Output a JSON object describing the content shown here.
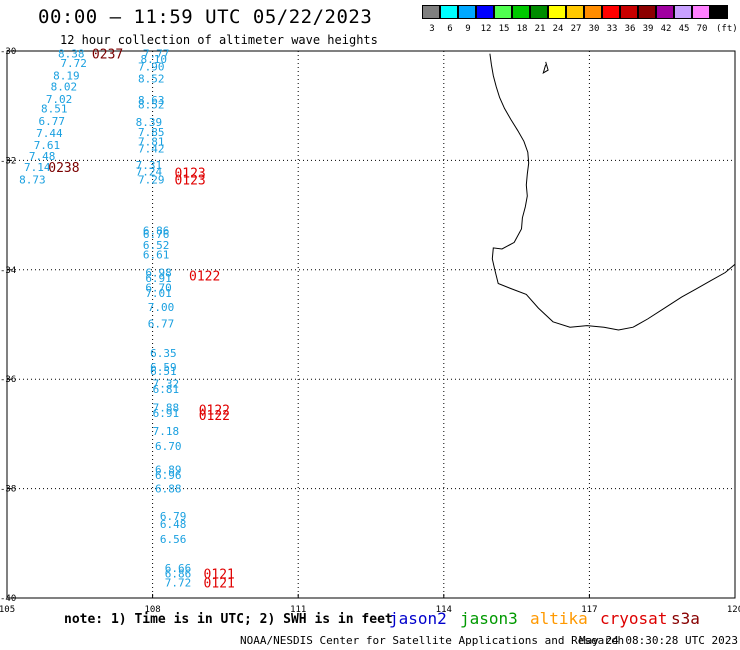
{
  "header": {
    "title": "00:00 – 11:59 UTC 05/22/2023",
    "subtitle": "12 hour collection of altimeter wave heights"
  },
  "colorbar": {
    "unit": "(ft)",
    "bins": [
      {
        "label": "3",
        "color": "#7f7f7f"
      },
      {
        "label": "6",
        "color": "#00ffff"
      },
      {
        "label": "9",
        "color": "#00a8ff"
      },
      {
        "label": "12",
        "color": "#0000ff"
      },
      {
        "label": "15",
        "color": "#50ff50"
      },
      {
        "label": "18",
        "color": "#00c800"
      },
      {
        "label": "21",
        "color": "#008c00"
      },
      {
        "label": "24",
        "color": "#ffff00"
      },
      {
        "label": "27",
        "color": "#ffc800"
      },
      {
        "label": "30",
        "color": "#ff8c00"
      },
      {
        "label": "33",
        "color": "#ff0000"
      },
      {
        "label": "36",
        "color": "#c80000"
      },
      {
        "label": "39",
        "color": "#8c0000"
      },
      {
        "label": "42",
        "color": "#a000a0"
      },
      {
        "label": "45",
        "color": "#c8a0ff"
      },
      {
        "label": "70",
        "color": "#ff80ff"
      },
      {
        "label": "",
        "color": "#000000"
      }
    ]
  },
  "map": {
    "lon_range": [
      105,
      120
    ],
    "lat_range": [
      -40,
      -30
    ],
    "lon_ticks": [
      "105",
      "108",
      "111",
      "114",
      "117",
      "120"
    ],
    "lat_ticks": [
      "-30",
      "-32",
      "-34",
      "-36",
      "-38",
      "-40"
    ],
    "grid_lons": [
      108,
      111,
      114,
      117
    ],
    "grid_lats": [
      -32,
      -34,
      -36,
      -38
    ],
    "value_color": "#1aa0e0",
    "time_colors": {
      "dark": "#7a0000",
      "red": "#e00000"
    },
    "swh_readings": [
      {
        "lon": 106.05,
        "lat": -30.05,
        "text": "8.38"
      },
      {
        "lon": 107.8,
        "lat": -30.05,
        "text": "7.77"
      },
      {
        "lon": 107.75,
        "lat": -30.15,
        "text": "8.10"
      },
      {
        "lon": 106.1,
        "lat": -30.22,
        "text": "7.72"
      },
      {
        "lon": 107.7,
        "lat": -30.28,
        "text": "7.90"
      },
      {
        "lon": 105.95,
        "lat": -30.45,
        "text": "8.19"
      },
      {
        "lon": 107.7,
        "lat": -30.5,
        "text": "8.52"
      },
      {
        "lon": 105.9,
        "lat": -30.65,
        "text": "8.02"
      },
      {
        "lon": 105.8,
        "lat": -30.88,
        "text": "7.02"
      },
      {
        "lon": 107.7,
        "lat": -30.9,
        "text": "8.63"
      },
      {
        "lon": 107.7,
        "lat": -30.98,
        "text": "8.52"
      },
      {
        "lon": 105.7,
        "lat": -31.05,
        "text": "8.51"
      },
      {
        "lon": 105.65,
        "lat": -31.28,
        "text": "6.77"
      },
      {
        "lon": 107.65,
        "lat": -31.3,
        "text": "8.39"
      },
      {
        "lon": 105.6,
        "lat": -31.5,
        "text": "7.44"
      },
      {
        "lon": 107.7,
        "lat": -31.48,
        "text": "7.85"
      },
      {
        "lon": 107.7,
        "lat": -31.65,
        "text": "7.81"
      },
      {
        "lon": 105.55,
        "lat": -31.72,
        "text": "7.61"
      },
      {
        "lon": 107.7,
        "lat": -31.78,
        "text": "7.42"
      },
      {
        "lon": 105.45,
        "lat": -31.92,
        "text": "7.48"
      },
      {
        "lon": 105.35,
        "lat": -32.12,
        "text": "7.14"
      },
      {
        "lon": 107.65,
        "lat": -32.08,
        "text": "7.31"
      },
      {
        "lon": 107.65,
        "lat": -32.2,
        "text": "7.24"
      },
      {
        "lon": 105.25,
        "lat": -32.35,
        "text": "8.73"
      },
      {
        "lon": 107.7,
        "lat": -32.35,
        "text": "7.29"
      },
      {
        "lon": 107.8,
        "lat": -33.28,
        "text": "6.86"
      },
      {
        "lon": 107.8,
        "lat": -33.35,
        "text": "6.76"
      },
      {
        "lon": 107.8,
        "lat": -33.55,
        "text": "6.52"
      },
      {
        "lon": 107.8,
        "lat": -33.72,
        "text": "6.61"
      },
      {
        "lon": 107.85,
        "lat": -34.05,
        "text": "6.98"
      },
      {
        "lon": 107.85,
        "lat": -34.15,
        "text": "6.91"
      },
      {
        "lon": 107.85,
        "lat": -34.32,
        "text": "6.70"
      },
      {
        "lon": 107.85,
        "lat": -34.42,
        "text": "7.01"
      },
      {
        "lon": 107.9,
        "lat": -34.68,
        "text": "7.00"
      },
      {
        "lon": 107.9,
        "lat": -34.98,
        "text": "6.77"
      },
      {
        "lon": 107.95,
        "lat": -35.52,
        "text": "6.35"
      },
      {
        "lon": 107.95,
        "lat": -35.78,
        "text": "6.59"
      },
      {
        "lon": 107.95,
        "lat": -35.85,
        "text": "6.51"
      },
      {
        "lon": 108.0,
        "lat": -36.08,
        "text": "7.32"
      },
      {
        "lon": 108.0,
        "lat": -36.18,
        "text": "6.81"
      },
      {
        "lon": 108.0,
        "lat": -36.52,
        "text": "7.88"
      },
      {
        "lon": 108.0,
        "lat": -36.62,
        "text": "6.91"
      },
      {
        "lon": 108.0,
        "lat": -36.95,
        "text": "7.18"
      },
      {
        "lon": 108.05,
        "lat": -37.22,
        "text": "6.70"
      },
      {
        "lon": 108.05,
        "lat": -37.65,
        "text": "6.89"
      },
      {
        "lon": 108.05,
        "lat": -37.75,
        "text": "6.96"
      },
      {
        "lon": 108.05,
        "lat": -38.0,
        "text": "6.88"
      },
      {
        "lon": 108.15,
        "lat": -38.5,
        "text": "6.79"
      },
      {
        "lon": 108.15,
        "lat": -38.65,
        "text": "6.48"
      },
      {
        "lon": 108.15,
        "lat": -38.92,
        "text": "6.56"
      },
      {
        "lon": 108.25,
        "lat": -39.45,
        "text": "6.66"
      },
      {
        "lon": 108.25,
        "lat": -39.55,
        "text": "6.86"
      },
      {
        "lon": 108.25,
        "lat": -39.72,
        "text": "7.72"
      }
    ],
    "pass_times": [
      {
        "lon": 106.75,
        "lat": -30.05,
        "text": "0237",
        "color_key": "dark"
      },
      {
        "lon": 105.85,
        "lat": -32.12,
        "text": "0238",
        "color_key": "dark"
      },
      {
        "lon": 108.45,
        "lat": -32.22,
        "text": "0123",
        "color_key": "red"
      },
      {
        "lon": 108.45,
        "lat": -32.35,
        "text": "0123",
        "color_key": "red"
      },
      {
        "lon": 108.75,
        "lat": -34.1,
        "text": "0122",
        "color_key": "red"
      },
      {
        "lon": 108.95,
        "lat": -36.55,
        "text": "0122",
        "color_key": "red"
      },
      {
        "lon": 108.95,
        "lat": -36.65,
        "text": "0122",
        "color_key": "red"
      },
      {
        "lon": 109.05,
        "lat": -39.55,
        "text": "0121",
        "color_key": "red"
      },
      {
        "lon": 109.05,
        "lat": -39.72,
        "text": "0121",
        "color_key": "red"
      }
    ],
    "coastline": [
      [
        114.95,
        -30.05
      ],
      [
        114.98,
        -30.25
      ],
      [
        115.02,
        -30.45
      ],
      [
        115.08,
        -30.65
      ],
      [
        115.15,
        -30.85
      ],
      [
        115.25,
        -31.05
      ],
      [
        115.38,
        -31.25
      ],
      [
        115.52,
        -31.45
      ],
      [
        115.65,
        -31.65
      ],
      [
        115.73,
        -31.85
      ],
      [
        115.75,
        -32.05
      ],
      [
        115.72,
        -32.25
      ],
      [
        115.7,
        -32.45
      ],
      [
        115.72,
        -32.65
      ],
      [
        115.68,
        -32.85
      ],
      [
        115.62,
        -33.05
      ],
      [
        115.6,
        -33.25
      ],
      [
        115.45,
        -33.5
      ],
      [
        115.2,
        -33.62
      ],
      [
        115.02,
        -33.6
      ],
      [
        115.0,
        -33.8
      ],
      [
        115.05,
        -34.0
      ],
      [
        115.12,
        -34.25
      ],
      [
        115.4,
        -34.35
      ],
      [
        115.7,
        -34.45
      ],
      [
        115.95,
        -34.7
      ],
      [
        116.25,
        -34.95
      ],
      [
        116.6,
        -35.05
      ],
      [
        116.95,
        -35.02
      ],
      [
        117.3,
        -35.05
      ],
      [
        117.6,
        -35.1
      ],
      [
        117.9,
        -35.05
      ],
      [
        118.2,
        -34.9
      ],
      [
        118.55,
        -34.7
      ],
      [
        118.9,
        -34.5
      ],
      [
        119.2,
        -34.35
      ],
      [
        119.5,
        -34.2
      ],
      [
        119.8,
        -34.05
      ],
      [
        120.0,
        -33.9
      ]
    ],
    "island": [
      [
        116.1,
        -30.2
      ],
      [
        116.15,
        -30.35
      ],
      [
        116.05,
        -30.4
      ],
      [
        116.1,
        -30.25
      ]
    ]
  },
  "footer": {
    "note": "note: 1) Time is in UTC; 2) SWH is in feet",
    "satellites": [
      {
        "label": "jason2",
        "color": "#0000cc"
      },
      {
        "label": "jason3",
        "color": "#009900"
      },
      {
        "label": "altika",
        "color": "#ff9900"
      },
      {
        "label": "cryosat",
        "color": "#dd0000"
      },
      {
        "label": "s3a",
        "color": "#880000"
      }
    ],
    "credit": "NOAA/NESDIS Center for Satellite Applications and Research",
    "timestamp": "May 24 08:30:28 UTC 2023"
  }
}
